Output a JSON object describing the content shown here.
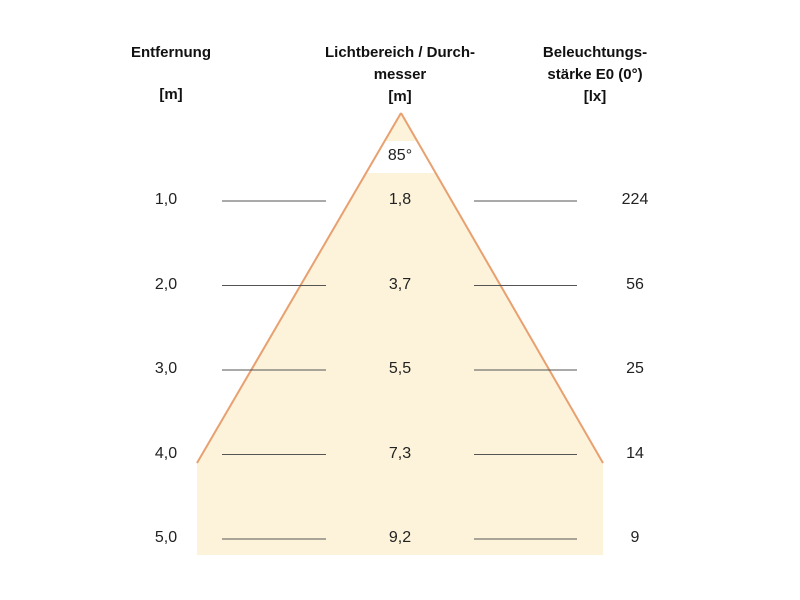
{
  "headers": {
    "distance_line1": "Entfernung",
    "distance_unit": "[m]",
    "diameter_line1": "Lichtbereich / Durch-",
    "diameter_line2": "messer",
    "diameter_unit": "[m]",
    "illuminance_line1": "Beleuchtungs-",
    "illuminance_line2": "stärke E0 (0°)",
    "illuminance_unit": "[lx]"
  },
  "beam_angle": "85°",
  "rows": [
    {
      "distance": "1,0",
      "diameter": "1,8",
      "illuminance": "224"
    },
    {
      "distance": "2,0",
      "diameter": "3,7",
      "illuminance": "56"
    },
    {
      "distance": "3,0",
      "diameter": "5,5",
      "illuminance": "25"
    },
    {
      "distance": "4,0",
      "diameter": "7,3",
      "illuminance": "14"
    },
    {
      "distance": "5,0",
      "diameter": "9,2",
      "illuminance": "9"
    }
  ],
  "colors": {
    "cone_fill": "#fdf3da",
    "cone_edge": "#e8a070",
    "rule_line": "#555555"
  }
}
